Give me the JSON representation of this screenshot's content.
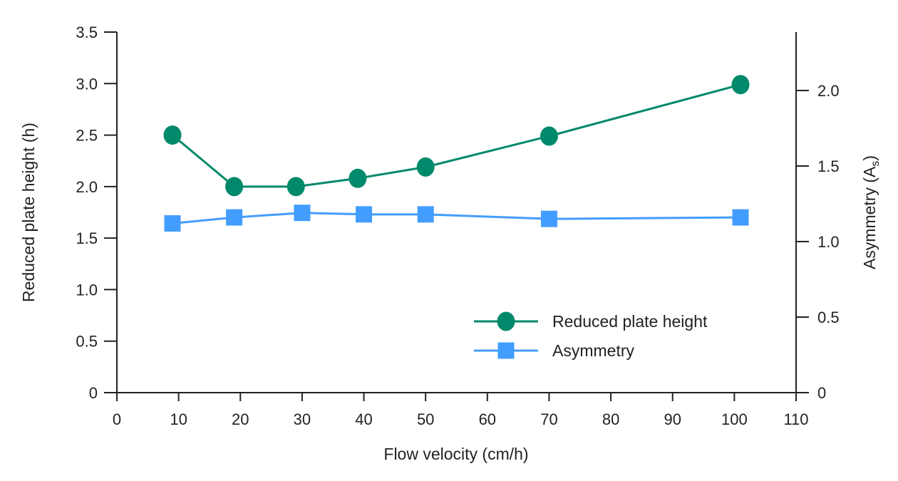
{
  "chart_data": {
    "type": "line",
    "xlabel": "Flow velocity (cm/h)",
    "ylabel": "Reduced plate height (h)",
    "y2label": "Asymmetry (A",
    "y2label_sub": "s",
    "y2label_close": ")",
    "xlim": [
      0,
      110
    ],
    "ylim": [
      0,
      3.5
    ],
    "y2lim": [
      0,
      2.39
    ],
    "xticks": [
      "0",
      "10",
      "20",
      "30",
      "40",
      "50",
      "60",
      "70",
      "80",
      "90",
      "100",
      "110"
    ],
    "yticks": [
      "0",
      "0.5",
      "1.0",
      "1.5",
      "2.0",
      "2.5",
      "3.0",
      "3.5"
    ],
    "y2ticks": [
      "0",
      "0.5",
      "1.0",
      "1.5",
      "2.0"
    ],
    "grid": false,
    "legend_position": "lower-right",
    "series": [
      {
        "name": "Reduced plate height",
        "axis": "left",
        "marker": "circle",
        "color": "#00896a",
        "x": [
          9,
          19,
          29,
          39,
          50,
          70,
          101
        ],
        "y": [
          2.5,
          2.0,
          2.0,
          2.08,
          2.19,
          2.49,
          2.99
        ]
      },
      {
        "name": "Asymmetry",
        "axis": "right",
        "marker": "square",
        "color": "#439dff",
        "x": [
          9,
          19,
          30,
          40,
          50,
          70,
          101
        ],
        "y": [
          1.12,
          1.16,
          1.19,
          1.18,
          1.18,
          1.15,
          1.16
        ]
      }
    ]
  }
}
